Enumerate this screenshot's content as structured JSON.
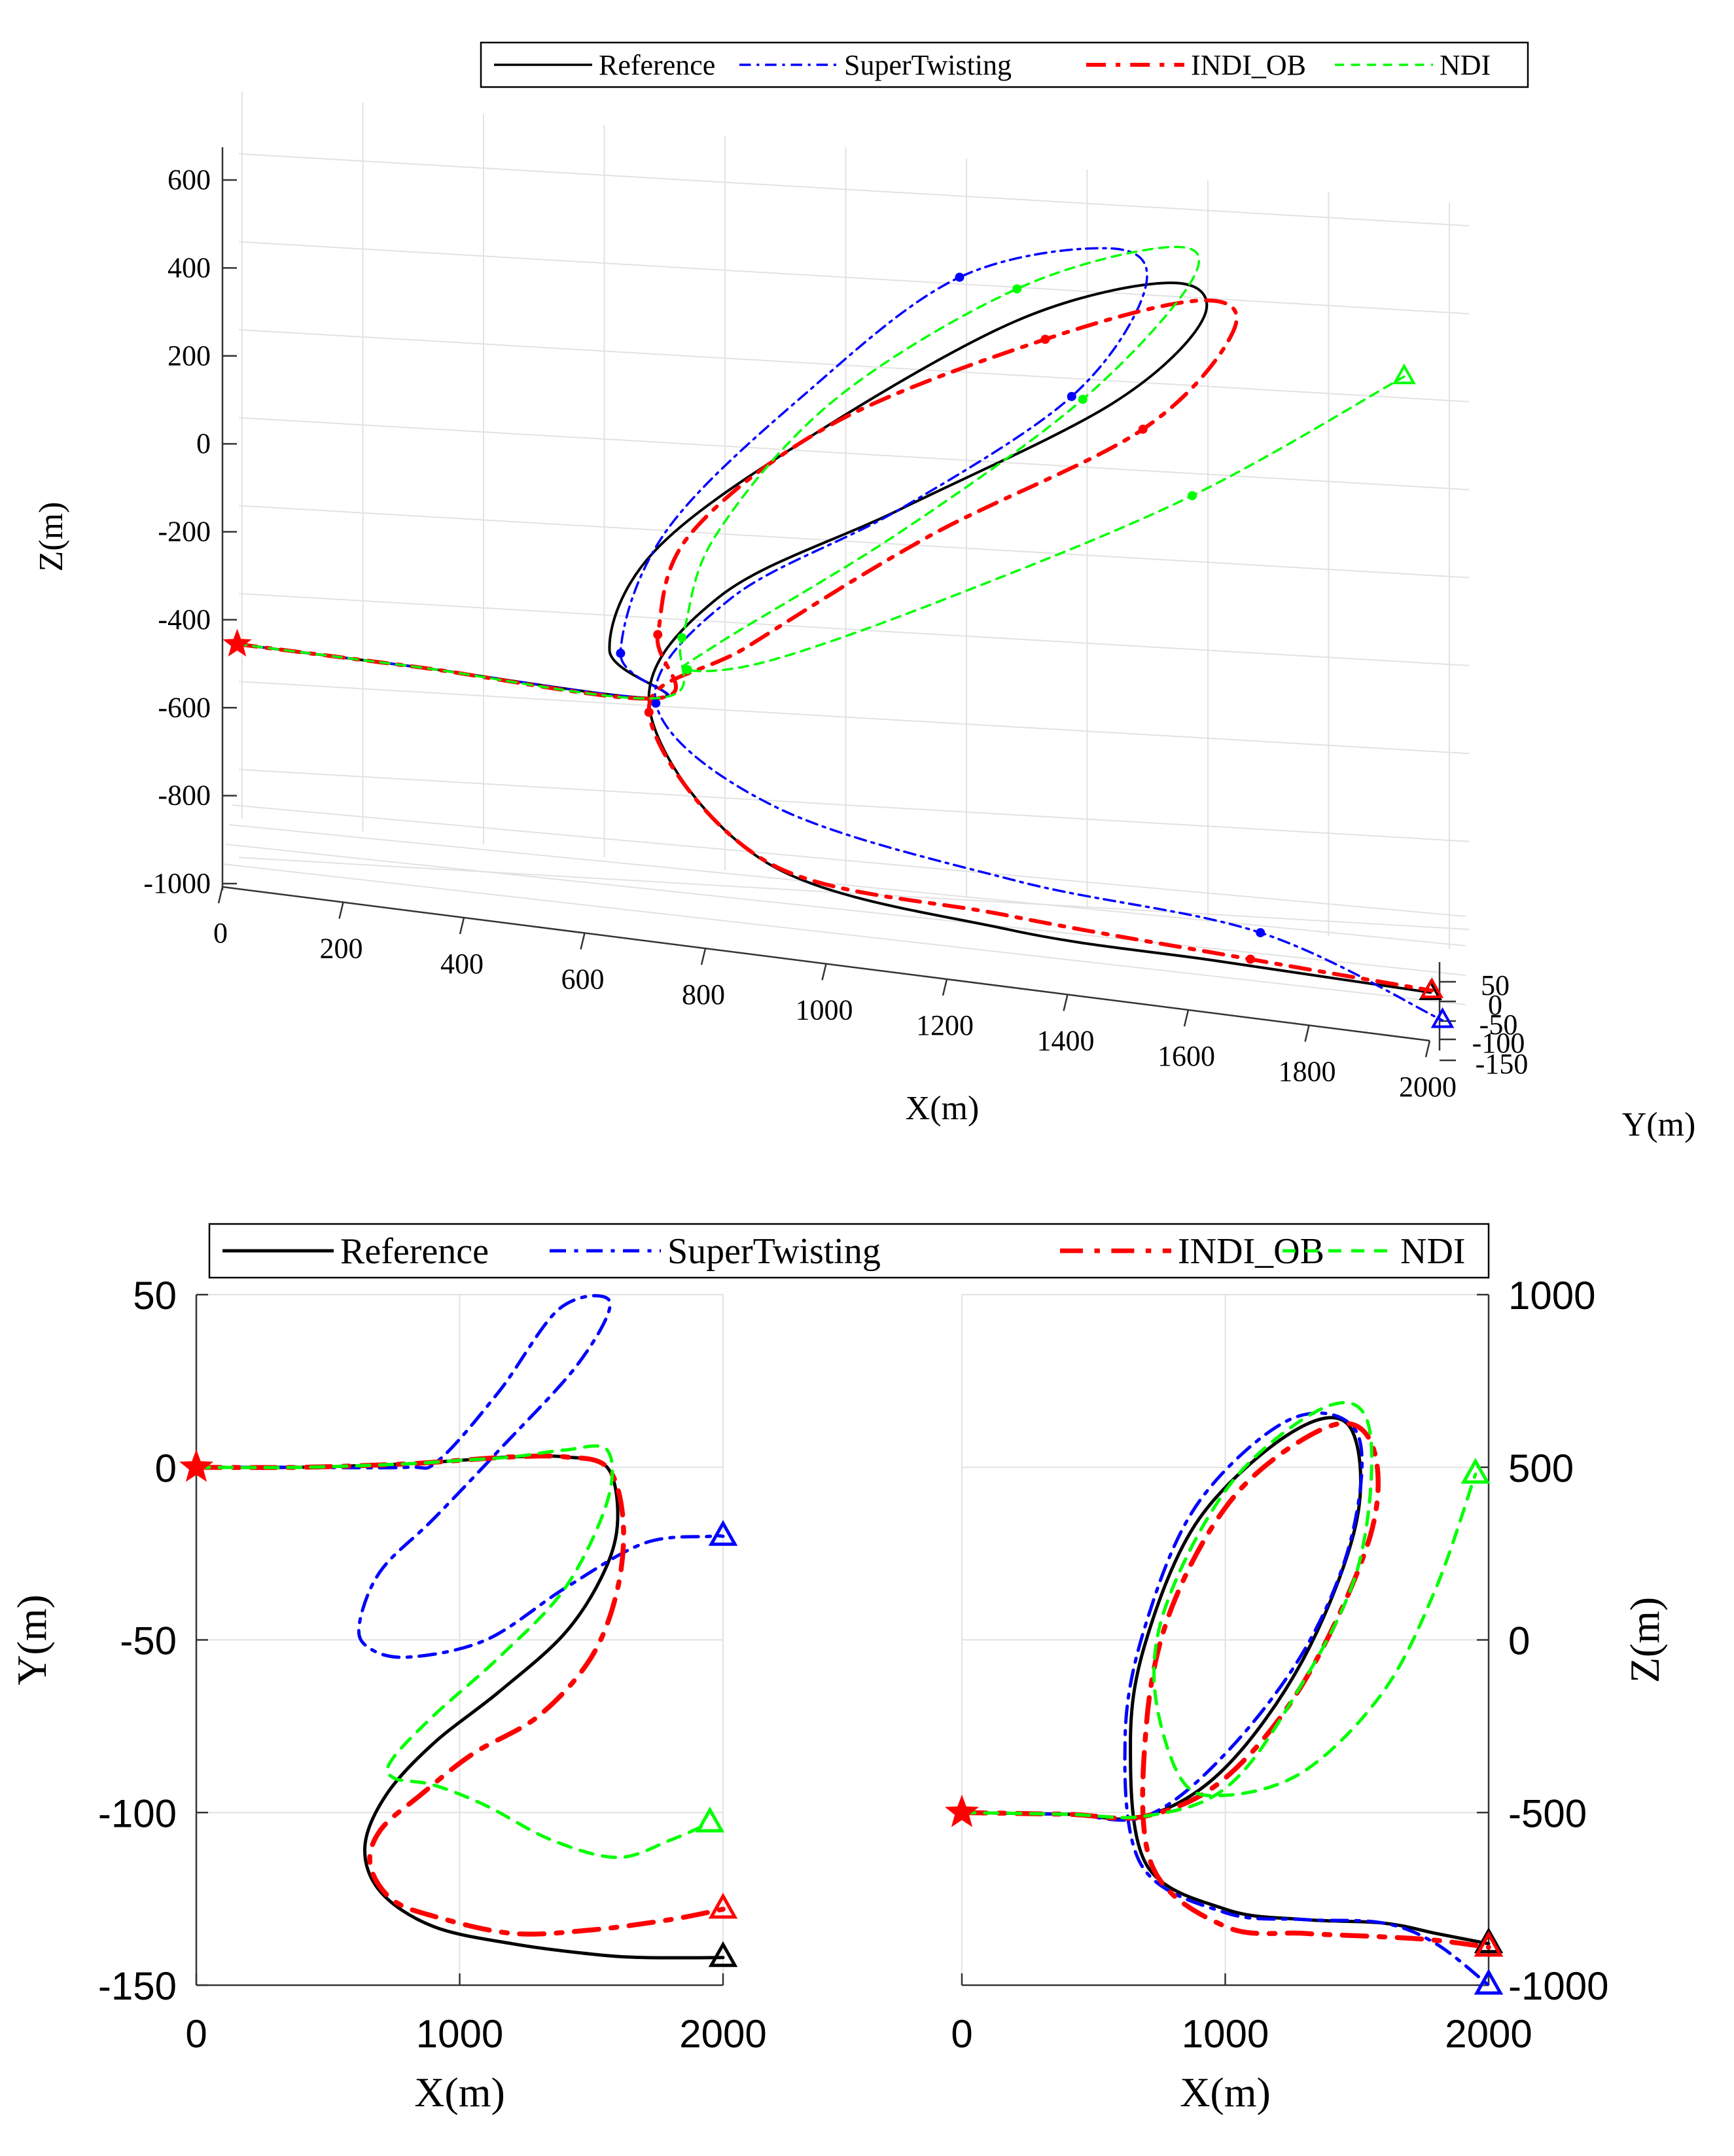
{
  "chart_data": [
    {
      "type": "line",
      "subtype": "3d-trajectory",
      "title": "",
      "xlabel": "X(m)",
      "ylabel": "Y(m)",
      "zlabel": "Z(m)",
      "xlim": [
        0,
        2000
      ],
      "ylim": [
        -150,
        50
      ],
      "zlim": [
        -1000,
        600
      ],
      "xticks": [
        "0",
        "200",
        "400",
        "600",
        "800",
        "1000",
        "1200",
        "1400",
        "1600",
        "1800",
        "2000"
      ],
      "yticks": [
        "50",
        "0",
        "-50",
        "-100",
        "-150"
      ],
      "zticks": [
        "600",
        "400",
        "200",
        "0",
        "-200",
        "-400",
        "-600",
        "-800",
        "-1000"
      ],
      "grid": true,
      "legend": {
        "placement": "top-right",
        "entries": [
          "Reference",
          "SuperTwisting",
          "INDI_OB",
          "NDI"
        ]
      },
      "start_marker": "star",
      "end_marker": "triangle",
      "series": [
        {
          "name": "Reference",
          "color": "#000000",
          "style": "solid",
          "x": [
            0,
            300,
            700,
            620,
            700,
            950,
            1300,
            1550,
            1600,
            1450,
            1100,
            800,
            700,
            900,
            1300,
            1650,
            2000
          ],
          "y": [
            0,
            0,
            0,
            -20,
            -60,
            -75,
            -60,
            -25,
            5,
            5,
            0,
            -10,
            -100,
            -135,
            -140,
            -143,
            -143
          ],
          "z": [
            -500,
            -500,
            -500,
            -400,
            -150,
            150,
            480,
            600,
            520,
            300,
            0,
            -250,
            -500,
            -800,
            -880,
            -890,
            -900
          ]
        },
        {
          "name": "SuperTwisting",
          "color": "#0000ff",
          "style": "dashdot",
          "x": [
            0,
            300,
            700,
            640,
            720,
            950,
            1200,
            1450,
            1500,
            1380,
            1100,
            820,
            700,
            900,
            1300,
            1700,
            2000
          ],
          "y": [
            0,
            0,
            0,
            -30,
            -50,
            -40,
            -20,
            10,
            20,
            15,
            5,
            -5,
            -40,
            -45,
            -40,
            -30,
            -20
          ],
          "z": [
            -500,
            -500,
            -500,
            -400,
            -100,
            250,
            550,
            650,
            560,
            300,
            0,
            -250,
            -500,
            -700,
            -800,
            -850,
            -1000
          ]
        },
        {
          "name": "INDI_OB",
          "color": "#ff0000",
          "style": "dashdot",
          "x": [
            0,
            300,
            700,
            700,
            760,
            1000,
            1350,
            1600,
            1650,
            1500,
            1150,
            850,
            700,
            900,
            1300,
            1700,
            2000
          ],
          "y": [
            0,
            0,
            0,
            -20,
            -60,
            -80,
            -70,
            -30,
            2,
            3,
            -5,
            -20,
            -110,
            -130,
            -135,
            -132,
            -128
          ],
          "z": [
            -500,
            -500,
            -500,
            -350,
            -100,
            200,
            450,
            570,
            500,
            250,
            -50,
            -350,
            -500,
            -800,
            -850,
            -880,
            -900
          ]
        },
        {
          "name": "NDI",
          "color": "#00ff00",
          "style": "dashed",
          "x": [
            0,
            300,
            700,
            740,
            800,
            1000,
            1300,
            1550,
            1580,
            1400,
            1100,
            800,
            760,
            900,
            1200,
            1600,
            1950
          ],
          "y": [
            0,
            0,
            0,
            -20,
            -50,
            -70,
            -50,
            -20,
            5,
            5,
            -10,
            -40,
            -85,
            -100,
            -110,
            -110,
            -103
          ],
          "z": [
            -500,
            -500,
            -500,
            -350,
            -100,
            250,
            550,
            680,
            600,
            300,
            -50,
            -350,
            -400,
            -350,
            -150,
            150,
            480
          ]
        }
      ]
    },
    {
      "type": "line",
      "subtype": "xy-projection",
      "xlabel": "X(m)",
      "ylabel": "Y(m)",
      "xlim": [
        0,
        2000
      ],
      "ylim": [
        -150,
        50
      ],
      "xticks": [
        "0",
        "1000",
        "2000"
      ],
      "yticks": [
        "50",
        "0",
        "-50",
        "-100",
        "-150"
      ],
      "grid": true,
      "legend": {
        "placement": "top",
        "entries": [
          "Reference",
          "SuperTwisting",
          "INDI_OB",
          "NDI"
        ]
      },
      "series": [
        {
          "name": "Reference",
          "color": "#000000",
          "style": "solid",
          "x": [
            0,
            400,
            800,
            1000,
            1200,
            1400,
            1560,
            1600,
            1550,
            1400,
            1150,
            900,
            720,
            640,
            700,
            900,
            1200,
            1500,
            1700,
            2000
          ],
          "y": [
            0,
            0,
            1,
            2,
            3,
            3,
            0,
            -15,
            -30,
            -48,
            -65,
            -80,
            -95,
            -110,
            -123,
            -133,
            -138,
            -141,
            -142,
            -142
          ]
        },
        {
          "name": "SuperTwisting",
          "color": "#0000ff",
          "style": "dashdot",
          "x": [
            0,
            400,
            800,
            920,
            1150,
            1380,
            1570,
            1450,
            1150,
            900,
            700,
            620,
            650,
            800,
            1100,
            1400,
            1700,
            1950,
            2000
          ],
          "y": [
            0,
            0,
            0,
            2,
            22,
            46,
            48,
            30,
            5,
            -15,
            -30,
            -45,
            -52,
            -55,
            -50,
            -35,
            -22,
            -20,
            -20
          ]
        },
        {
          "name": "INDI_OB",
          "color": "#ff0000",
          "style": "dashdot",
          "x": [
            0,
            400,
            800,
            1000,
            1200,
            1400,
            1560,
            1620,
            1600,
            1500,
            1300,
            1050,
            850,
            700,
            660,
            740,
            900,
            1200,
            1500,
            1800,
            2000
          ],
          "y": [
            0,
            0,
            1,
            2,
            3,
            3,
            0,
            -15,
            -35,
            -55,
            -72,
            -83,
            -95,
            -105,
            -115,
            -125,
            -130,
            -135,
            -134,
            -131,
            -128
          ]
        },
        {
          "name": "NDI",
          "color": "#00ff00",
          "style": "dashed",
          "x": [
            0,
            400,
            800,
            1000,
            1200,
            1400,
            1560,
            1560,
            1400,
            1150,
            900,
            740,
            750,
            900,
            1100,
            1350,
            1600,
            1800,
            1950
          ],
          "y": [
            0,
            0,
            1,
            2,
            3,
            5,
            5,
            -10,
            -35,
            -55,
            -72,
            -85,
            -90,
            -92,
            -98,
            -108,
            -113,
            -108,
            -103
          ]
        }
      ]
    },
    {
      "type": "line",
      "subtype": "xz-projection",
      "xlabel": "X(m)",
      "ylabel": "Z(m)",
      "xlim": [
        0,
        2000
      ],
      "ylim": [
        -1000,
        1000
      ],
      "xticks": [
        "0",
        "1000",
        "2000"
      ],
      "yticks": [
        "1000",
        "500",
        "0",
        "-500",
        "-1000"
      ],
      "grid": true,
      "series": [
        {
          "name": "Reference",
          "color": "#000000",
          "style": "solid",
          "x": [
            0,
            400,
            700,
            1000,
            1300,
            1500,
            1470,
            1250,
            900,
            700,
            640,
            700,
            1000,
            1300,
            1600,
            1800,
            2000
          ],
          "y": [
            -500,
            -505,
            -510,
            -370,
            -50,
            350,
            620,
            600,
            350,
            0,
            -300,
            -650,
            -780,
            -810,
            -820,
            -850,
            -880
          ]
        },
        {
          "name": "SuperTwisting",
          "color": "#0000ff",
          "style": "dashdot",
          "x": [
            0,
            400,
            700,
            1000,
            1300,
            1480,
            1500,
            1250,
            900,
            700,
            620,
            680,
            1000,
            1300,
            1600,
            1800,
            2000
          ],
          "y": [
            -500,
            -505,
            -510,
            -330,
            -30,
            300,
            600,
            640,
            400,
            50,
            -280,
            -650,
            -790,
            -810,
            -820,
            -880,
            -1000
          ]
        },
        {
          "name": "INDI_OB",
          "color": "#ff0000",
          "style": "dashdot",
          "x": [
            0,
            400,
            700,
            1000,
            1300,
            1550,
            1560,
            1400,
            1050,
            800,
            700,
            720,
            1000,
            1300,
            1600,
            1800,
            2000
          ],
          "y": [
            -500,
            -505,
            -510,
            -400,
            -120,
            300,
            560,
            620,
            430,
            100,
            -250,
            -650,
            -830,
            -850,
            -860,
            -870,
            -890
          ]
        },
        {
          "name": "NDI",
          "color": "#00ff00",
          "style": "dashed",
          "x": [
            0,
            400,
            700,
            1000,
            1250,
            1500,
            1550,
            1400,
            1050,
            800,
            730,
            830,
            1000,
            1300,
            1600,
            1800,
            1950
          ],
          "y": [
            -500,
            -505,
            -510,
            -430,
            -180,
            200,
            600,
            680,
            480,
            150,
            -120,
            -400,
            -450,
            -380,
            -150,
            150,
            480
          ]
        }
      ]
    }
  ]
}
